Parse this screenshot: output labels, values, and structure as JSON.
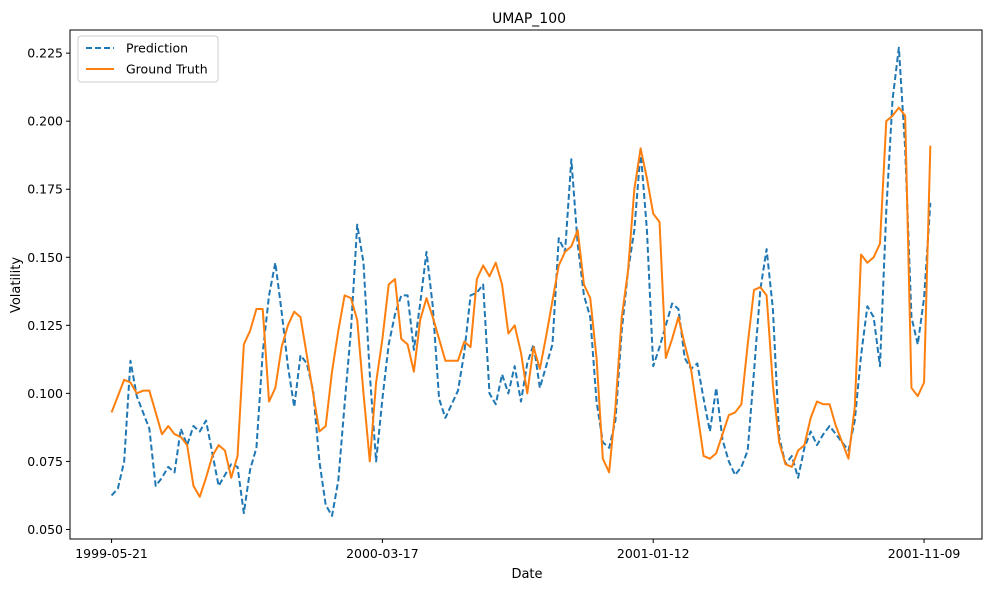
{
  "chart_data": {
    "type": "line",
    "title": "UMAP_100",
    "xlabel": "Date",
    "ylabel": "Volatility",
    "x_tick_labels": [
      "1999-05-21",
      "2000-03-17",
      "2001-01-12",
      "2001-11-09"
    ],
    "x_tick_index": [
      0,
      43,
      86,
      129
    ],
    "y_ticks": [
      0.05,
      0.075,
      0.1,
      0.125,
      0.15,
      0.175,
      0.2,
      0.225
    ],
    "y_tick_labels": [
      "0.050",
      "0.075",
      "0.100",
      "0.125",
      "0.150",
      "0.175",
      "0.200",
      "0.225"
    ],
    "ylim": [
      0.0465,
      0.2335
    ],
    "xlim": [
      -6.6,
      138.2
    ],
    "grid": false,
    "legend_position": "top-left",
    "series": [
      {
        "name": "Prediction",
        "color": "#1f77b4",
        "style": "dashed",
        "values": [
          0.0625,
          0.065,
          0.075,
          0.112,
          0.099,
          0.093,
          0.087,
          0.066,
          0.069,
          0.073,
          0.071,
          0.087,
          0.081,
          0.088,
          0.086,
          0.09,
          0.078,
          0.066,
          0.07,
          0.074,
          0.073,
          0.056,
          0.072,
          0.08,
          0.115,
          0.136,
          0.148,
          0.13,
          0.11,
          0.095,
          0.114,
          0.111,
          0.101,
          0.075,
          0.059,
          0.055,
          0.068,
          0.096,
          0.123,
          0.162,
          0.148,
          0.107,
          0.075,
          0.098,
          0.118,
          0.129,
          0.136,
          0.136,
          0.116,
          0.133,
          0.152,
          0.132,
          0.098,
          0.091,
          0.096,
          0.101,
          0.115,
          0.136,
          0.137,
          0.14,
          0.1,
          0.096,
          0.107,
          0.1,
          0.11,
          0.097,
          0.111,
          0.118,
          0.102,
          0.11,
          0.118,
          0.157,
          0.152,
          0.186,
          0.155,
          0.136,
          0.128,
          0.097,
          0.082,
          0.08,
          0.09,
          0.123,
          0.145,
          0.16,
          0.189,
          0.16,
          0.11,
          0.117,
          0.125,
          0.133,
          0.131,
          0.113,
          0.109,
          0.111,
          0.098,
          0.086,
          0.102,
          0.083,
          0.075,
          0.07,
          0.073,
          0.079,
          0.108,
          0.138,
          0.153,
          0.131,
          0.084,
          0.074,
          0.077,
          0.069,
          0.08,
          0.086,
          0.081,
          0.085,
          0.088,
          0.085,
          0.082,
          0.079,
          0.09,
          0.114,
          0.132,
          0.128,
          0.11,
          0.167,
          0.208,
          0.227,
          0.19,
          0.128,
          0.118,
          0.135,
          0.17
        ]
      },
      {
        "name": "Ground Truth",
        "color": "#ff7f0e",
        "style": "solid",
        "values": [
          0.093,
          0.099,
          0.105,
          0.104,
          0.1,
          0.101,
          0.101,
          0.093,
          0.085,
          0.088,
          0.085,
          0.084,
          0.081,
          0.066,
          0.062,
          0.069,
          0.077,
          0.081,
          0.079,
          0.069,
          0.077,
          0.118,
          0.123,
          0.131,
          0.131,
          0.097,
          0.102,
          0.117,
          0.125,
          0.13,
          0.128,
          0.114,
          0.1,
          0.086,
          0.088,
          0.108,
          0.123,
          0.136,
          0.135,
          0.127,
          0.1,
          0.075,
          0.104,
          0.12,
          0.14,
          0.142,
          0.12,
          0.118,
          0.108,
          0.127,
          0.135,
          0.128,
          0.12,
          0.112,
          0.112,
          0.112,
          0.119,
          0.117,
          0.142,
          0.147,
          0.143,
          0.148,
          0.14,
          0.122,
          0.125,
          0.115,
          0.1,
          0.117,
          0.109,
          0.121,
          0.134,
          0.147,
          0.152,
          0.154,
          0.16,
          0.14,
          0.135,
          0.113,
          0.076,
          0.071,
          0.095,
          0.128,
          0.145,
          0.175,
          0.19,
          0.179,
          0.166,
          0.163,
          0.113,
          0.12,
          0.128,
          0.118,
          0.109,
          0.093,
          0.077,
          0.076,
          0.078,
          0.085,
          0.092,
          0.093,
          0.096,
          0.118,
          0.138,
          0.139,
          0.136,
          0.103,
          0.082,
          0.074,
          0.073,
          0.079,
          0.081,
          0.091,
          0.097,
          0.096,
          0.096,
          0.088,
          0.082,
          0.076,
          0.095,
          0.151,
          0.148,
          0.15,
          0.155,
          0.2,
          0.202,
          0.205,
          0.202,
          0.102,
          0.099,
          0.104,
          0.191
        ]
      }
    ]
  }
}
